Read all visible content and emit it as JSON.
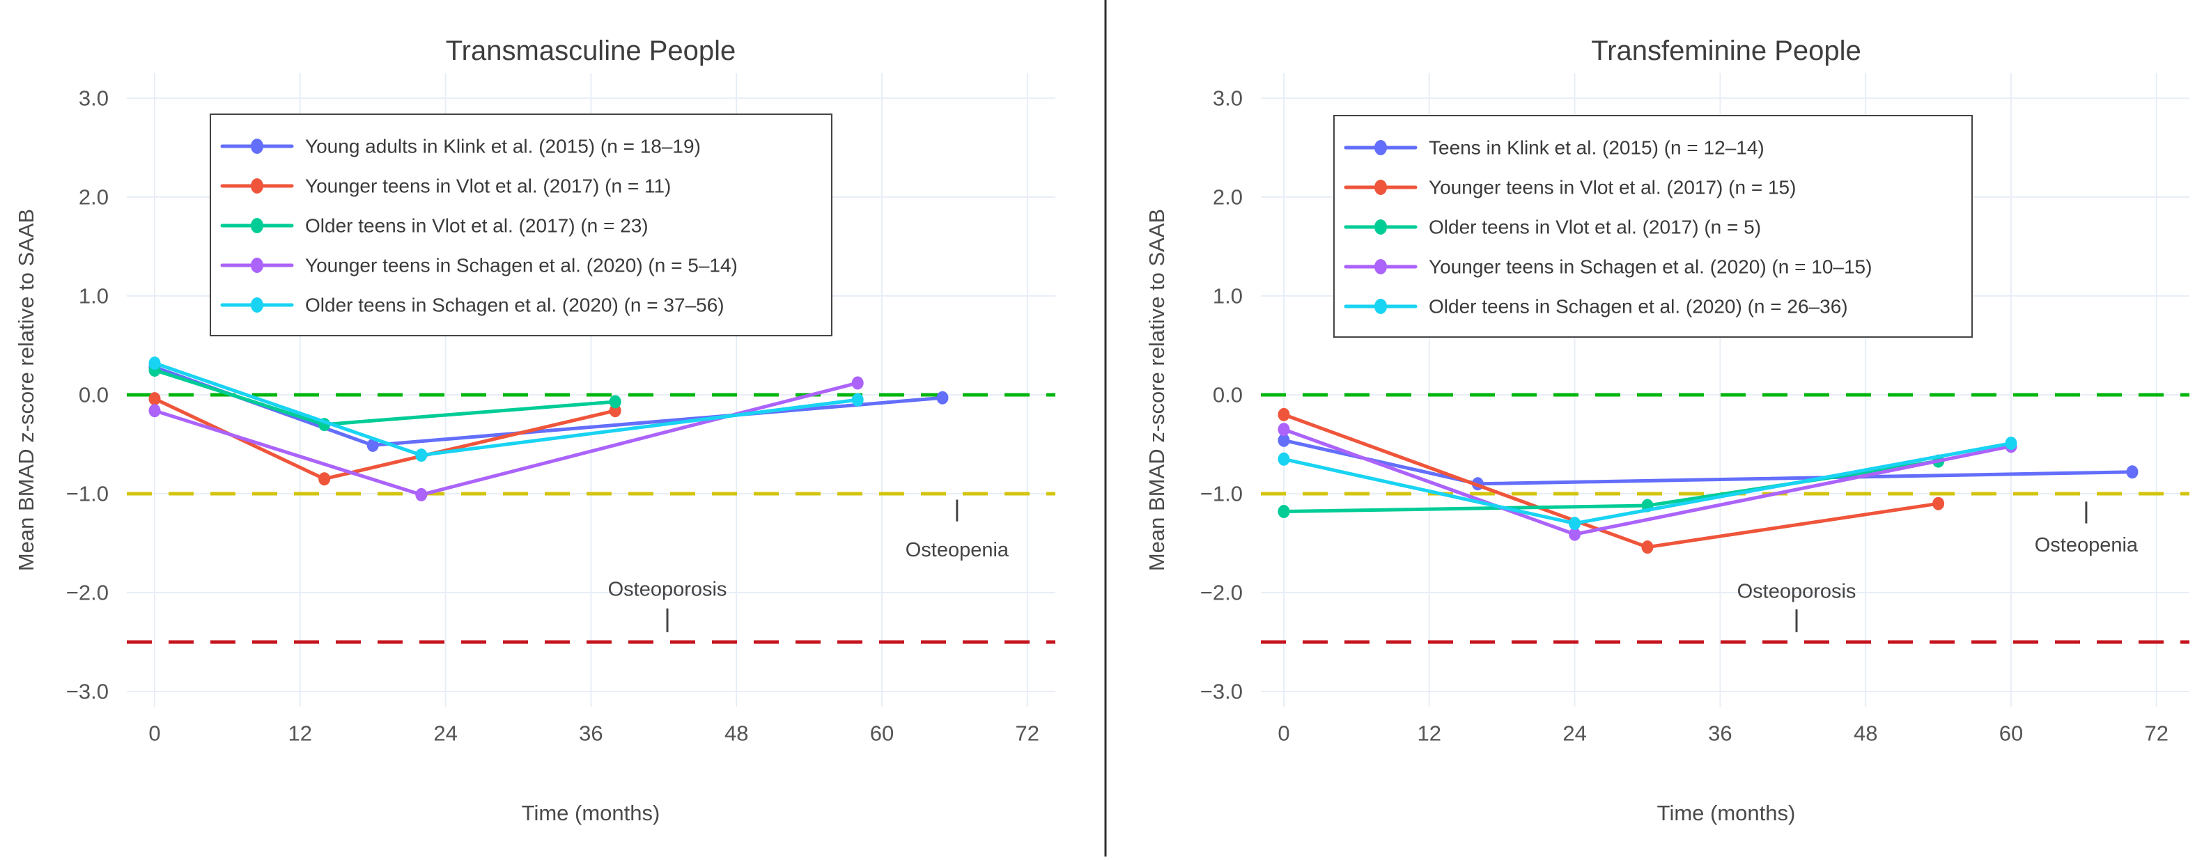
{
  "figure": {
    "background": "#ffffff",
    "divider_color": "#2f2f2f",
    "grid_color": "#e8eef7",
    "text_color": "#444444"
  },
  "chart_data": [
    {
      "type": "line",
      "id": "transmasculine",
      "title": "Transmasculine People",
      "xlabel": "Time (months)",
      "ylabel": "Mean BMAD z-score relative to SAAB",
      "x_ticks": [
        0,
        12,
        24,
        36,
        48,
        60,
        72
      ],
      "x_tick_labels": [
        "0",
        "12",
        "24",
        "36",
        "48",
        "60",
        "72"
      ],
      "y_ticks": [
        3.0,
        2.0,
        1.0,
        0.0,
        -1.0,
        -2.0,
        -3.0
      ],
      "y_tick_labels": [
        "3.0",
        "2.0",
        "1.0",
        "0.0",
        "−1.0",
        "−2.0",
        "−3.0"
      ],
      "xlim": [
        -2.4,
        76.6
      ],
      "ylim": [
        -3.15,
        3.25
      ],
      "grid": true,
      "legend_position": "upper-left-inside",
      "reference_lines": [
        {
          "id": "saab-baseline",
          "y": 0.0,
          "color": "#00b50d",
          "style": "dashed"
        },
        {
          "id": "osteopenia-threshold",
          "y": -1.0,
          "color": "#d3c40e",
          "style": "dashed"
        },
        {
          "id": "osteoporosis-threshold",
          "y": -2.5,
          "color": "#c5131d",
          "style": "dashed"
        }
      ],
      "annotations": [
        {
          "label": "Osteopenia",
          "x": 66.2,
          "text_y": -1.57,
          "tick_y1": -1.06,
          "tick_y2": -1.28
        },
        {
          "label": "Osteoporosis",
          "x": 42.3,
          "text_y": -1.97,
          "tick_y1": -2.16,
          "tick_y2": -2.4
        }
      ],
      "series": [
        {
          "id": "klink-young-adults",
          "name": "Young adults in Klink et al. (2015) (n = 18–19)",
          "color": "#636efa",
          "x": [
            0,
            18,
            65
          ],
          "y": [
            0.28,
            -0.51,
            -0.03
          ]
        },
        {
          "id": "vlot-younger-teens",
          "name": "Younger teens in Vlot et al. (2017) (n = 11)",
          "color": "#ef553b",
          "x": [
            0,
            14,
            38
          ],
          "y": [
            -0.04,
            -0.85,
            -0.16
          ]
        },
        {
          "id": "vlot-older-teens",
          "name": "Older teens in Vlot et al. (2017) (n = 23)",
          "color": "#00cc96",
          "x": [
            0,
            14,
            38
          ],
          "y": [
            0.25,
            -0.3,
            -0.07
          ]
        },
        {
          "id": "schagen-younger-teens",
          "name": "Younger teens in Schagen et al. (2020) (n = 5–14)",
          "color": "#ab63fa",
          "x": [
            0,
            22,
            58
          ],
          "y": [
            -0.16,
            -1.01,
            0.12
          ]
        },
        {
          "id": "schagen-older-teens",
          "name": "Older teens in Schagen et al. (2020) (n = 37–56)",
          "color": "#19d3f3",
          "x": [
            0,
            22,
            58
          ],
          "y": [
            0.32,
            -0.61,
            -0.05
          ]
        }
      ]
    },
    {
      "type": "line",
      "id": "transfeminine",
      "title": "Transfeminine People",
      "xlabel": "Time (months)",
      "ylabel": "Mean BMAD z-score relative to SAAB",
      "x_ticks": [
        0,
        12,
        24,
        36,
        48,
        60,
        72
      ],
      "x_tick_labels": [
        "0",
        "12",
        "24",
        "36",
        "48",
        "60",
        "72"
      ],
      "y_ticks": [
        3.0,
        2.0,
        1.0,
        0.0,
        -1.0,
        -2.0,
        -3.0
      ],
      "y_tick_labels": [
        "3.0",
        "2.0",
        "1.0",
        "0.0",
        "−1.0",
        "−2.0",
        "−3.0"
      ],
      "xlim": [
        -1.9,
        74.7
      ],
      "ylim": [
        -3.15,
        3.25
      ],
      "grid": true,
      "legend_position": "upper-left-inside",
      "reference_lines": [
        {
          "id": "saab-baseline",
          "y": 0.0,
          "color": "#00b50d",
          "style": "dashed"
        },
        {
          "id": "osteopenia-threshold",
          "y": -1.0,
          "color": "#d3c40e",
          "style": "dashed"
        },
        {
          "id": "osteoporosis-threshold",
          "y": -2.5,
          "color": "#c5131d",
          "style": "dashed"
        }
      ],
      "annotations": [
        {
          "label": "Osteopenia",
          "x": 66.2,
          "text_y": -1.52,
          "tick_y1": -1.08,
          "tick_y2": -1.3
        },
        {
          "label": "Osteoporosis",
          "x": 42.3,
          "text_y": -1.99,
          "tick_y1": -2.17,
          "tick_y2": -2.4
        }
      ],
      "series": [
        {
          "id": "klink-teens",
          "name": "Teens in Klink et al. (2015) (n = 12–14)",
          "color": "#636efa",
          "x": [
            0,
            16,
            70
          ],
          "y": [
            -0.46,
            -0.9,
            -0.78
          ]
        },
        {
          "id": "vlot-younger-teens",
          "name": "Younger teens in Vlot et al. (2017) (n = 15)",
          "color": "#ef553b",
          "x": [
            0,
            30,
            54
          ],
          "y": [
            -0.2,
            -1.54,
            -1.1
          ]
        },
        {
          "id": "vlot-older-teens",
          "name": "Older teens in Vlot et al. (2017) (n = 5)",
          "color": "#00cc96",
          "x": [
            0,
            30,
            54
          ],
          "y": [
            -1.18,
            -1.12,
            -0.67
          ]
        },
        {
          "id": "schagen-younger-teens",
          "name": "Younger teens in Schagen et al. (2020) (n = 10–15)",
          "color": "#ab63fa",
          "x": [
            0,
            24,
            60
          ],
          "y": [
            -0.35,
            -1.41,
            -0.52
          ]
        },
        {
          "id": "schagen-older-teens",
          "name": "Older teens in Schagen et al. (2020) (n = 26–36)",
          "color": "#19d3f3",
          "x": [
            0,
            24,
            60
          ],
          "y": [
            -0.65,
            -1.3,
            -0.49
          ]
        }
      ]
    }
  ]
}
